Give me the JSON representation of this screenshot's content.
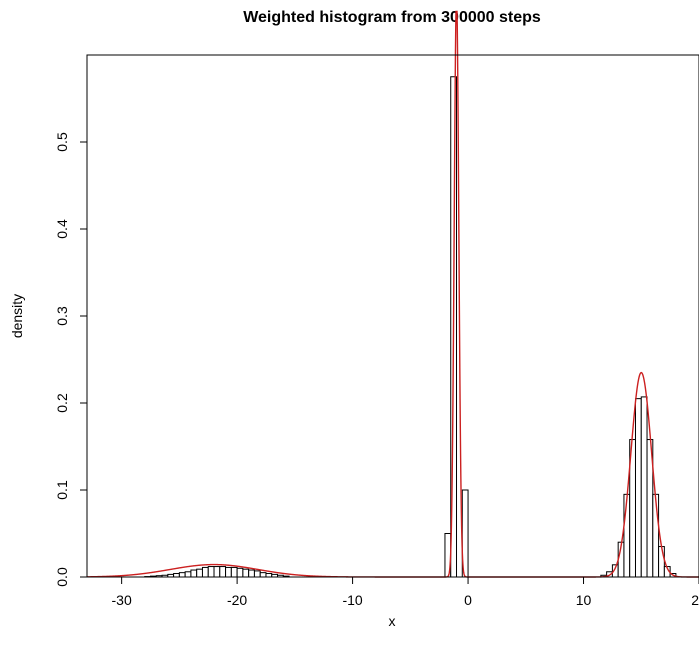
{
  "chart_data": {
    "type": "bar",
    "title": "Weighted histogram from 300000 steps",
    "xlabel": "x",
    "ylabel": "density",
    "xlim": [
      -33,
      20
    ],
    "ylim": [
      0,
      0.6
    ],
    "x_ticks": [
      -30,
      -20,
      -10,
      0,
      10,
      20
    ],
    "x_tick_labels": [
      "-30",
      "-20",
      "-10",
      "0",
      "10",
      "20"
    ],
    "y_ticks": [
      0.0,
      0.1,
      0.2,
      0.3,
      0.4,
      0.5
    ],
    "y_tick_labels": [
      "0.0",
      "0.1",
      "0.2",
      "0.3",
      "0.4",
      "0.5"
    ],
    "grid": false,
    "bin_width": 0.5,
    "histogram": [
      {
        "x0": -28.0,
        "density": 0.0005
      },
      {
        "x0": -27.5,
        "density": 0.001
      },
      {
        "x0": -27.0,
        "density": 0.0015
      },
      {
        "x0": -26.5,
        "density": 0.002
      },
      {
        "x0": -26.0,
        "density": 0.003
      },
      {
        "x0": -25.5,
        "density": 0.004
      },
      {
        "x0": -25.0,
        "density": 0.005
      },
      {
        "x0": -24.5,
        "density": 0.006
      },
      {
        "x0": -24.0,
        "density": 0.008
      },
      {
        "x0": -23.5,
        "density": 0.009
      },
      {
        "x0": -23.0,
        "density": 0.011
      },
      {
        "x0": -22.5,
        "density": 0.012
      },
      {
        "x0": -22.0,
        "density": 0.012
      },
      {
        "x0": -21.5,
        "density": 0.012
      },
      {
        "x0": -21.0,
        "density": 0.011
      },
      {
        "x0": -20.5,
        "density": 0.011
      },
      {
        "x0": -20.0,
        "density": 0.01
      },
      {
        "x0": -19.5,
        "density": 0.009
      },
      {
        "x0": -19.0,
        "density": 0.008
      },
      {
        "x0": -18.5,
        "density": 0.007
      },
      {
        "x0": -18.0,
        "density": 0.005
      },
      {
        "x0": -17.5,
        "density": 0.004
      },
      {
        "x0": -17.0,
        "density": 0.003
      },
      {
        "x0": -16.5,
        "density": 0.002
      },
      {
        "x0": -16.0,
        "density": 0.001
      },
      {
        "x0": -2.0,
        "density": 0.05
      },
      {
        "x0": -1.5,
        "density": 0.575
      },
      {
        "x0": -1.0,
        "density": 0.0
      },
      {
        "x0": -0.5,
        "density": 0.1
      },
      {
        "x0": 11.5,
        "density": 0.002
      },
      {
        "x0": 12.0,
        "density": 0.006
      },
      {
        "x0": 12.5,
        "density": 0.014
      },
      {
        "x0": 13.0,
        "density": 0.04
      },
      {
        "x0": 13.5,
        "density": 0.095
      },
      {
        "x0": 14.0,
        "density": 0.158
      },
      {
        "x0": 14.5,
        "density": 0.205
      },
      {
        "x0": 15.0,
        "density": 0.207
      },
      {
        "x0": 15.5,
        "density": 0.158
      },
      {
        "x0": 16.0,
        "density": 0.095
      },
      {
        "x0": 16.5,
        "density": 0.035
      },
      {
        "x0": 17.0,
        "density": 0.012
      },
      {
        "x0": 17.5,
        "density": 0.004
      }
    ],
    "density_curve": {
      "color": "#cc2020",
      "components": [
        {
          "weight": 0.136,
          "mean": -22,
          "sd": 3.8
        },
        {
          "weight": 0.335,
          "mean": -1.0,
          "sd": 0.2
        },
        {
          "weight": 0.53,
          "mean": 15,
          "sd": 0.9
        }
      ]
    },
    "colors": {
      "bar_stroke": "#000000",
      "bar_fill": "#ffffff",
      "curve": "#cc2020",
      "axis": "#000000"
    }
  }
}
